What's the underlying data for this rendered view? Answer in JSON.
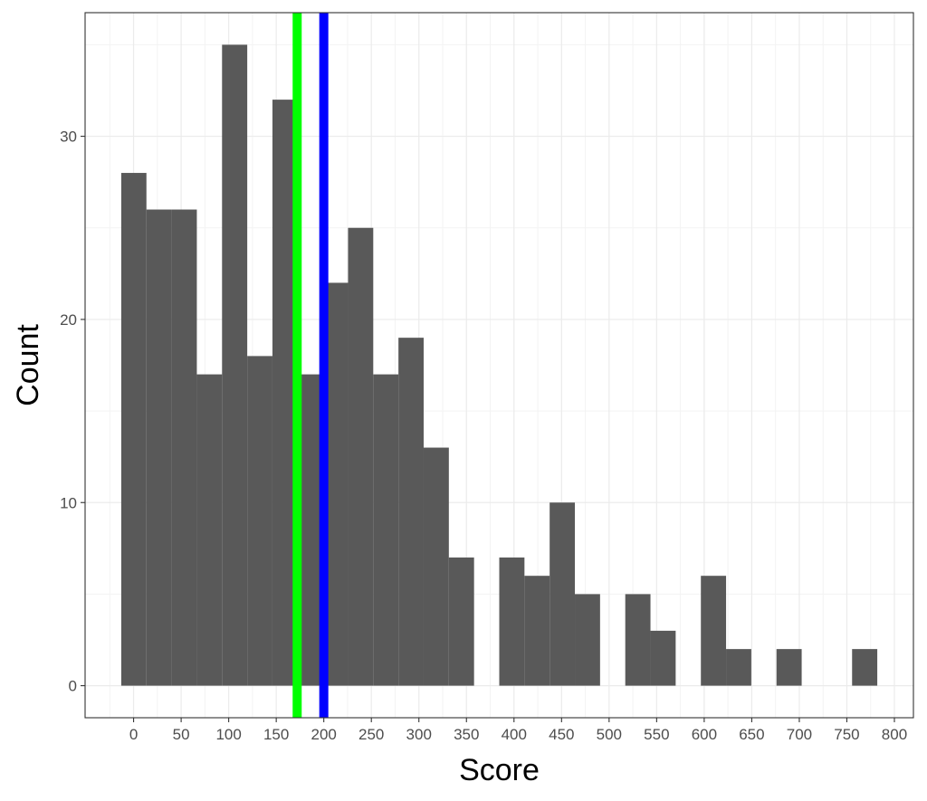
{
  "chart_data": {
    "type": "histogram",
    "xlabel": "Score",
    "ylabel": "Count",
    "bin_width": 26.5,
    "bins": [
      {
        "x_start": -13,
        "x_end": 13.5,
        "count": 28
      },
      {
        "x_start": 13.5,
        "x_end": 40,
        "count": 26
      },
      {
        "x_start": 40,
        "x_end": 66.5,
        "count": 26
      },
      {
        "x_start": 66.5,
        "x_end": 93,
        "count": 17
      },
      {
        "x_start": 93,
        "x_end": 119.5,
        "count": 35
      },
      {
        "x_start": 119.5,
        "x_end": 146,
        "count": 18
      },
      {
        "x_start": 146,
        "x_end": 172.5,
        "count": 32
      },
      {
        "x_start": 172.5,
        "x_end": 199,
        "count": 17
      },
      {
        "x_start": 199,
        "x_end": 225.5,
        "count": 22
      },
      {
        "x_start": 225.5,
        "x_end": 252,
        "count": 25
      },
      {
        "x_start": 252,
        "x_end": 278.5,
        "count": 17
      },
      {
        "x_start": 278.5,
        "x_end": 305,
        "count": 19
      },
      {
        "x_start": 305,
        "x_end": 331.5,
        "count": 13
      },
      {
        "x_start": 331.5,
        "x_end": 358,
        "count": 7
      },
      {
        "x_start": 358,
        "x_end": 384.5,
        "count": 0
      },
      {
        "x_start": 384.5,
        "x_end": 411,
        "count": 7
      },
      {
        "x_start": 411,
        "x_end": 437.5,
        "count": 6
      },
      {
        "x_start": 437.5,
        "x_end": 464,
        "count": 10
      },
      {
        "x_start": 464,
        "x_end": 490.5,
        "count": 5
      },
      {
        "x_start": 490.5,
        "x_end": 517,
        "count": 0
      },
      {
        "x_start": 517,
        "x_end": 543.5,
        "count": 5
      },
      {
        "x_start": 543.5,
        "x_end": 570,
        "count": 3
      },
      {
        "x_start": 570,
        "x_end": 596.5,
        "count": 0
      },
      {
        "x_start": 596.5,
        "x_end": 623,
        "count": 6
      },
      {
        "x_start": 623,
        "x_end": 649.5,
        "count": 2
      },
      {
        "x_start": 649.5,
        "x_end": 676,
        "count": 0
      },
      {
        "x_start": 676,
        "x_end": 702.5,
        "count": 2
      },
      {
        "x_start": 702.5,
        "x_end": 729,
        "count": 0
      },
      {
        "x_start": 729,
        "x_end": 755.5,
        "count": 0
      },
      {
        "x_start": 755.5,
        "x_end": 782,
        "count": 2
      }
    ],
    "vlines": [
      {
        "x": 172,
        "color": "#00ff00"
      },
      {
        "x": 200,
        "color": "#0000ff"
      }
    ],
    "xlim": [
      -51,
      820
    ],
    "ylim": [
      -1.75,
      36.75
    ],
    "xticks": [
      "0",
      "50",
      "100",
      "150",
      "200",
      "250",
      "300",
      "350",
      "400",
      "450",
      "500",
      "550",
      "600",
      "650",
      "700",
      "750",
      "800"
    ],
    "xtick_values": [
      0,
      50,
      100,
      150,
      200,
      250,
      300,
      350,
      400,
      450,
      500,
      550,
      600,
      650,
      700,
      750,
      800
    ],
    "yticks": [
      "0",
      "10",
      "20",
      "30"
    ],
    "ytick_values": [
      0,
      10,
      20,
      30
    ],
    "grid": true,
    "colors": {
      "bar_fill": "#595959",
      "grid_major": "#ebebeb",
      "grid_minor": "#f3f3f3",
      "panel_border": "#333333",
      "tick_text": "#4d4d4d",
      "title_text": "#000000"
    }
  }
}
